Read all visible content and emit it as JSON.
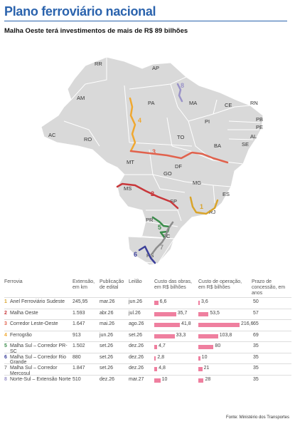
{
  "header": {
    "title": "Plano ferroviário nacional",
    "subtitle": "Malha Oeste terá investimentos de mais de R$ 89 bilhões"
  },
  "map": {
    "states": [
      "RR",
      "AP",
      "AM",
      "PA",
      "MA",
      "CE",
      "RN",
      "PB",
      "PE",
      "AL",
      "SE",
      "AC",
      "RO",
      "TO",
      "PI",
      "BA",
      "MT",
      "DF",
      "GO",
      "MG",
      "ES",
      "MS",
      "SP",
      "RJ",
      "PR",
      "SC",
      "RS"
    ],
    "route_numbers": [
      "1",
      "2",
      "3",
      "4",
      "5",
      "6",
      "7",
      "8"
    ]
  },
  "colors": {
    "r1": "#d9a42a",
    "r2": "#c8373a",
    "r3": "#e1624d",
    "r4": "#f0a830",
    "r5": "#3a8c4a",
    "r6": "#3b3f9a",
    "r7": "#8d8d8d",
    "r8": "#9a93c8",
    "land": "#d9d9d9",
    "border": "#ffffff",
    "bar": "#ef7f9f",
    "title": "#2b63ad"
  },
  "table": {
    "headers": {
      "ferrovia": "Ferrovia",
      "extensao": "Extensão, em km",
      "publicacao": "Publicação de edital",
      "leilao": "Leilão",
      "custo_obras": "Custo das obras, em R$ bilhões",
      "custo_operacao": "Custo de operação, em R$ bilhões",
      "prazo": "Prazo de concessão, em anos"
    },
    "rows": [
      {
        "num": "1",
        "name": "Anel Ferroviário Sudeste",
        "ext": "245,95",
        "pub": "mar.26",
        "leilao": "jun.26",
        "obras": "6,6",
        "obras_v": 6.6,
        "oper": "3,6",
        "oper_v": 3.6,
        "prazo": "50"
      },
      {
        "num": "2",
        "name": "Malha Oeste",
        "ext": "1.593",
        "pub": "abr.26",
        "leilao": "jul.26",
        "obras": "35,7",
        "obras_v": 35.7,
        "oper": "53,5",
        "oper_v": 53.5,
        "prazo": "57"
      },
      {
        "num": "3",
        "name": "Corredor Leste-Oeste",
        "ext": "1.647",
        "pub": "mai.26",
        "leilao": "ago.26",
        "obras": "41,8",
        "obras_v": 41.8,
        "oper": "216,6",
        "oper_v": 216.6,
        "prazo": "65"
      },
      {
        "num": "4",
        "name": "Ferrogrão",
        "ext": "913",
        "pub": "jun.26",
        "leilao": "set.26",
        "obras": "33,3",
        "obras_v": 33.3,
        "oper": "103,8",
        "oper_v": 103.8,
        "prazo": "69"
      },
      {
        "num": "5",
        "name": "Malha Sul – Corredor PR-SC",
        "ext": "1.502",
        "pub": "set.26",
        "leilao": "dez.26",
        "obras": "4,7",
        "obras_v": 4.7,
        "oper": "80",
        "oper_v": 80,
        "prazo": "35"
      },
      {
        "num": "6",
        "name": "Malha Sul – Corredor Rio Grande",
        "ext": "880",
        "pub": "set.26",
        "leilao": "dez.26",
        "obras": "2,8",
        "obras_v": 2.8,
        "oper": "10",
        "oper_v": 10,
        "prazo": "35"
      },
      {
        "num": "7",
        "name": "Malha Sul – Corredor Mercosul",
        "ext": "1.847",
        "pub": "set.26",
        "leilao": "dez.26",
        "obras": "4,8",
        "obras_v": 4.8,
        "oper": "21",
        "oper_v": 21,
        "prazo": "35"
      },
      {
        "num": "8",
        "name": "Norte-Sul – Extensão Norte",
        "ext": "510",
        "pub": "dez.26",
        "leilao": "mar.27",
        "obras": "10",
        "obras_v": 10,
        "oper": "28",
        "oper_v": 28,
        "prazo": "35"
      }
    ]
  },
  "source": "Fonte: Ministério dos Transportes"
}
